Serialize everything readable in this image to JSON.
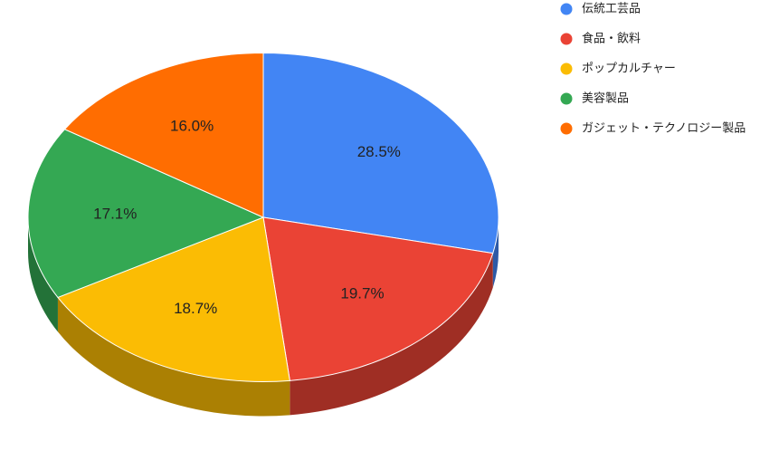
{
  "chart_data": {
    "type": "pie",
    "categories": [
      "伝統工芸品",
      "食品・飲料",
      "ポップカルチャー",
      "美容製品",
      "ガジェット・テクノロジー製品"
    ],
    "values": [
      28.5,
      19.7,
      18.7,
      17.1,
      16.0
    ],
    "value_labels": [
      "28.5%",
      "19.7%",
      "18.7%",
      "17.1%",
      "16.0%"
    ],
    "colors": [
      "#4285f4",
      "#ea4335",
      "#fbbc04",
      "#34a853",
      "#ff6d01"
    ],
    "legend": "right"
  }
}
